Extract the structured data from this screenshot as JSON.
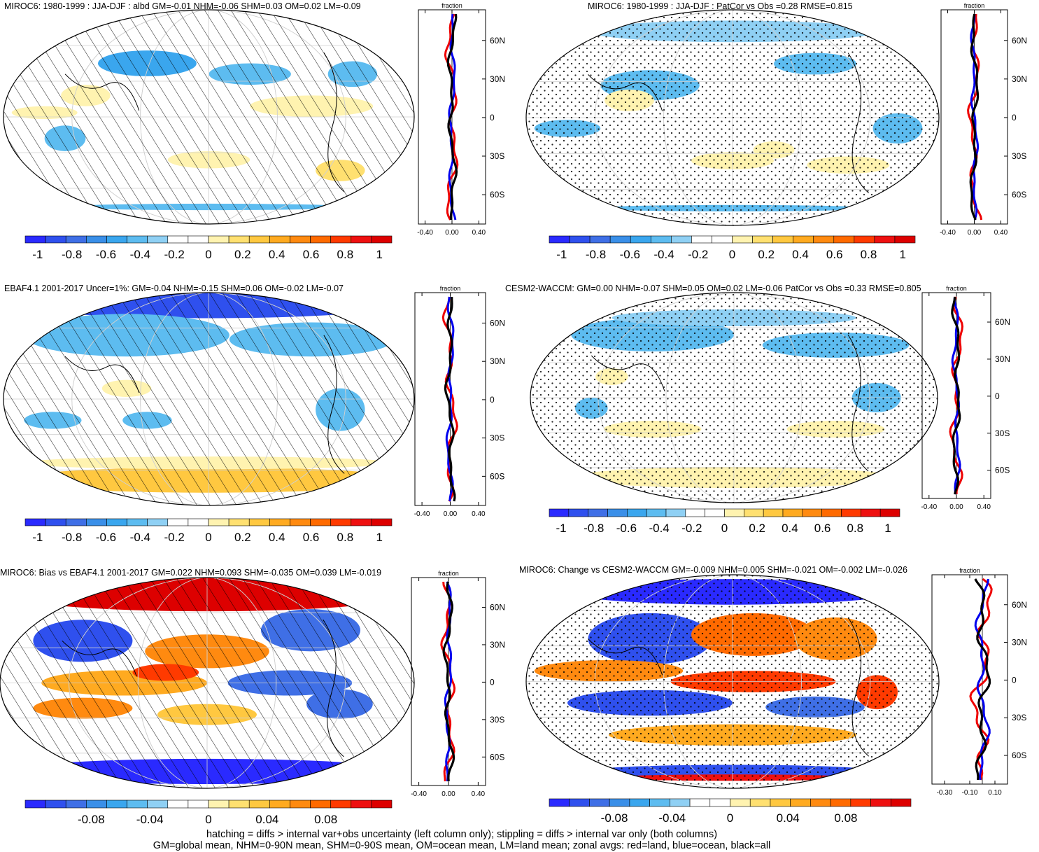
{
  "chart_data": [
    {
      "type": "map",
      "title": "MIROC6: 1980-1999 : JJA-DJF : albd GM=-0.01 NHM=-0.06 SHM=0.03 OM=0.02 LM=-0.09",
      "colorbar": {
        "ticks": [
          "-1",
          "-0.8",
          "-0.6",
          "-0.4",
          "-0.2",
          "0",
          "0.2",
          "0.4",
          "0.6",
          "0.8",
          "1"
        ]
      },
      "zonal": {
        "xlabel": "fraction",
        "xticks": [
          "-0.40",
          "0.00",
          "0.40"
        ],
        "ylabels": [
          "60N",
          "30N",
          "0",
          "30S",
          "60S"
        ],
        "xlim": [
          -0.5,
          0.5
        ]
      },
      "overlay": "hatching"
    },
    {
      "type": "map",
      "title": "MIROC6: 1980-1999 : JJA-DJF : PatCor vs Obs =0.28 RMSE=0.815",
      "colorbar": {
        "ticks": [
          "-1",
          "-0.8",
          "-0.6",
          "-0.4",
          "-0.2",
          "0",
          "0.2",
          "0.4",
          "0.6",
          "0.8",
          "1"
        ]
      },
      "zonal": {
        "xlabel": "fraction",
        "xticks": [
          "-0.40",
          "0.00",
          "0.40"
        ],
        "ylabels": [
          "60N",
          "30N",
          "0",
          "30S",
          "60S"
        ],
        "xlim": [
          -0.5,
          0.5
        ]
      },
      "overlay": "stippling"
    },
    {
      "type": "map",
      "title": "EBAF4.1 2001-2017 Uncer=1%: GM=-0.04 NHM=-0.15 SHM=0.06 OM=-0.02 LM=-0.07",
      "colorbar": {
        "ticks": [
          "-1",
          "-0.8",
          "-0.6",
          "-0.4",
          "-0.2",
          "0",
          "0.2",
          "0.4",
          "0.6",
          "0.8",
          "1"
        ]
      },
      "zonal": {
        "xlabel": "fraction",
        "xticks": [
          "-0.40",
          "0.00",
          "0.40"
        ],
        "ylabels": [
          "60N",
          "30N",
          "0",
          "30S",
          "60S"
        ],
        "xlim": [
          -0.5,
          0.5
        ]
      },
      "overlay": "hatching"
    },
    {
      "type": "map",
      "title": "CESM2-WACCM: GM=0.00 NHM=-0.07 SHM=0.05 OM=0.02 LM=-0.06 PatCor vs Obs =0.33 RMSE=0.805",
      "colorbar": {
        "ticks": [
          "-1",
          "-0.8",
          "-0.6",
          "-0.4",
          "-0.2",
          "0",
          "0.2",
          "0.4",
          "0.6",
          "0.8",
          "1"
        ]
      },
      "zonal": {
        "xlabel": "fraction",
        "xticks": [
          "-0.40",
          "0.00",
          "0.40"
        ],
        "ylabels": [
          "60N",
          "30N",
          "0",
          "30S",
          "60S"
        ],
        "xlim": [
          -0.5,
          0.5
        ]
      },
      "overlay": "stippling"
    },
    {
      "type": "map",
      "title": "MIROC6: Bias vs EBAF4.1 2001-2017 GM=0.022 NHM=0.093 SHM=-0.035 OM=0.039 LM=-0.019",
      "colorbar": {
        "ticks": [
          "-0.08",
          "-0.04",
          "0",
          "0.04",
          "0.08"
        ]
      },
      "zonal": {
        "xlabel": "fraction",
        "xticks": [
          "-0.40",
          "0.00",
          "0.40"
        ],
        "ylabels": [
          "60N",
          "30N",
          "0",
          "30S",
          "60S"
        ],
        "xlim": [
          -0.5,
          0.5
        ]
      },
      "overlay": "hatching"
    },
    {
      "type": "map",
      "title": "MIROC6: Change vs CESM2-WACCM GM=-0.009 NHM=0.005 SHM=-0.021 OM=-0.002 LM=-0.026",
      "colorbar": {
        "ticks": [
          "-0.08",
          "-0.04",
          "0",
          "0.04",
          "0.08"
        ]
      },
      "zonal": {
        "xlabel": "fraction",
        "xticks": [
          "-0.30",
          "-0.10",
          "0.10"
        ],
        "ylabels": [
          "60N",
          "30N",
          "0",
          "30S",
          "60S"
        ],
        "xlim": [
          -0.4,
          0.2
        ]
      },
      "overlay": "stippling"
    }
  ],
  "footer": {
    "line1": "hatching = diffs > internal var+obs uncertainty (left column only); stippling = diffs > internal var only (both columns)",
    "line2": "GM=global mean, NHM=0-90N mean, SHM=0-90S mean, OM=ocean mean, LM=land mean; zonal avgs: red=land, blue=ocean, black=all"
  },
  "colors": {
    "palette": [
      "#2a2aff",
      "#2f50ee",
      "#3f6fe6",
      "#3a8fe8",
      "#3aa6ee",
      "#5dbcf0",
      "#8fd0f4",
      "#ffffff",
      "#ffffff",
      "#fff3b0",
      "#ffe070",
      "#ffc840",
      "#ffaa20",
      "#ff8a10",
      "#ff6a00",
      "#ff3a00",
      "#ee1010",
      "#dd0000"
    ],
    "land_line": "#ee0000",
    "ocean_line": "#0000ee",
    "all_line": "#000000"
  }
}
